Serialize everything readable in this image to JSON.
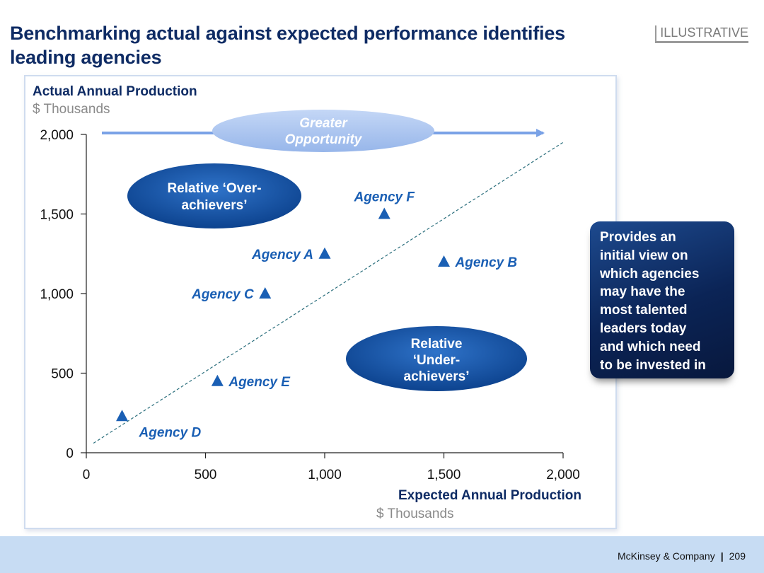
{
  "header": {
    "title": "Benchmarking actual against expected performance identifies leading agencies",
    "badge": "ILLUSTRATIVE"
  },
  "callout": {
    "lines": [
      "Provides an",
      "initial view on",
      "which agencies",
      "may have the",
      "most talented",
      "leaders today",
      "and which need",
      "to be invested in"
    ]
  },
  "footer": {
    "company": "McKinsey & Company",
    "page": "209"
  },
  "colors": {
    "title": "#0e2b64",
    "marker": "#1a5fb4",
    "label": "#1a5fb4",
    "oval": "#0b4a9a",
    "opportunity_oval": "#a9c4ef",
    "arrow": "#7aa2e6",
    "footer": "#c7dcf3"
  },
  "chart_data": {
    "type": "scatter",
    "ylabel": "Actual Annual Production",
    "yunit": "$ Thousands",
    "xlabel": "Expected Annual Production",
    "xunit": "$ Thousands",
    "xlim": [
      0,
      2000
    ],
    "ylim": [
      0,
      2000
    ],
    "xticks": [
      0,
      500,
      1000,
      1500,
      2000
    ],
    "yticks": [
      0,
      500,
      1000,
      1500,
      2000
    ],
    "tick_labels_x": [
      "0",
      "500",
      "1,000",
      "1,500",
      "2,000"
    ],
    "tick_labels_y": [
      "0",
      "500",
      "1,000",
      "1,500",
      "2,000"
    ],
    "reference_line": {
      "from": [
        30,
        60
      ],
      "to": [
        2000,
        1950
      ],
      "style": "dashed"
    },
    "points": [
      {
        "label": "Agency A",
        "x": 1000,
        "y": 1250,
        "label_side": "left"
      },
      {
        "label": "Agency B",
        "x": 1500,
        "y": 1200,
        "label_side": "right"
      },
      {
        "label": "Agency C",
        "x": 750,
        "y": 1000,
        "label_side": "left"
      },
      {
        "label": "Agency D",
        "x": 150,
        "y": 230,
        "label_side": "below-right"
      },
      {
        "label": "Agency E",
        "x": 550,
        "y": 450,
        "label_side": "right"
      },
      {
        "label": "Agency F",
        "x": 1250,
        "y": 1500,
        "label_side": "above"
      }
    ],
    "annotations": {
      "over_achievers": [
        "Relative ‘Over-",
        "achievers’"
      ],
      "under_achievers": [
        "Relative",
        "‘Under-",
        "achievers’"
      ],
      "opportunity": [
        "Greater",
        "Opportunity"
      ]
    }
  }
}
